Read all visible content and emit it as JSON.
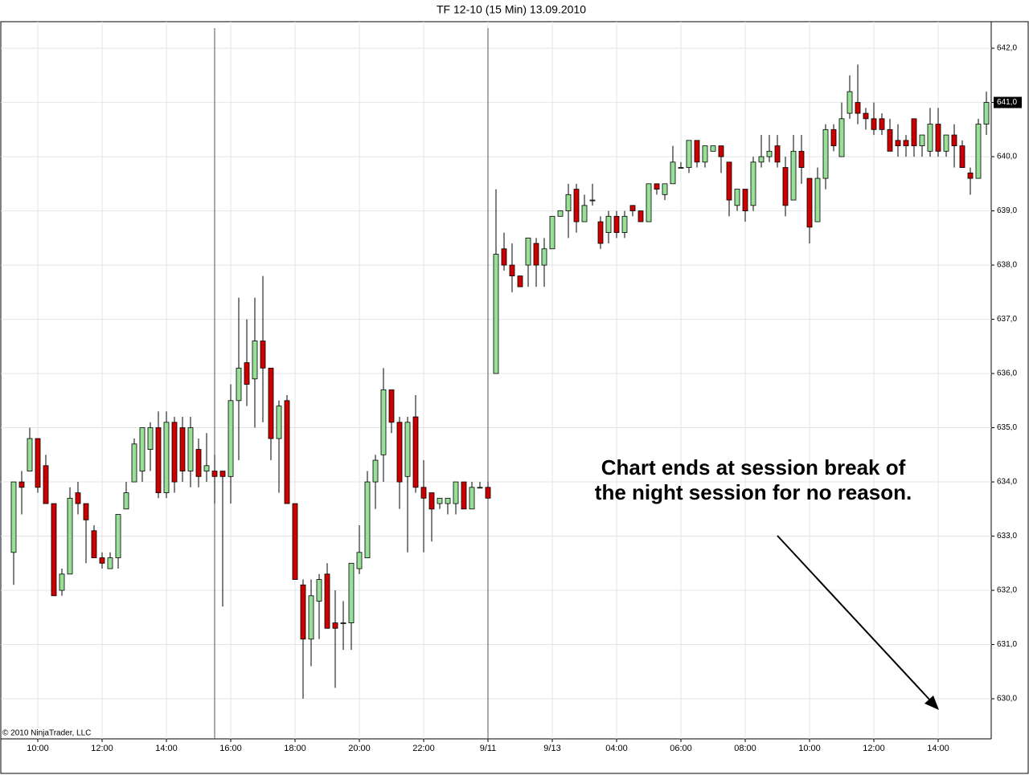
{
  "chart_data": {
    "type": "candlestick",
    "title": "TF 12-10 (15 Min)  13.09.2010",
    "annotation": [
      "Chart ends at session break of",
      "the night session for no reason."
    ],
    "copyright": "© 2010 NinjaTrader, LLC",
    "up_color": "#98e098",
    "down_color": "#cc0000",
    "grid": true,
    "categories": [
      null,
      null,
      null,
      "10:00",
      null,
      null,
      null,
      null,
      null,
      null,
      null,
      "12:00",
      null,
      null,
      null,
      null,
      null,
      null,
      null,
      "14:00",
      null,
      null,
      null,
      null,
      null,
      null,
      null,
      "16:00",
      null,
      null,
      null,
      null,
      null,
      null,
      null,
      "18:00",
      null,
      null,
      null,
      null,
      null,
      null,
      null,
      "20:00",
      null,
      null,
      null,
      null,
      null,
      null,
      null,
      "22:00",
      null,
      null,
      null,
      null,
      null,
      null,
      null,
      "9/11",
      null,
      null,
      null,
      null,
      null,
      null,
      null,
      "9/13",
      null,
      null,
      null,
      null,
      null,
      null,
      null,
      "04:00",
      null,
      null,
      null,
      null,
      null,
      null,
      null,
      "06:00",
      null,
      null,
      null,
      null,
      null,
      null,
      null,
      "08:00",
      null,
      null,
      null,
      null,
      null,
      null,
      null,
      "10:00",
      null,
      null,
      null,
      null,
      null,
      null,
      null,
      "12:00",
      null,
      null,
      null,
      null,
      null,
      null,
      null,
      "14:00",
      null,
      null,
      null,
      null,
      null,
      null
    ],
    "open": [
      632.7,
      634.0,
      634.2,
      634.8,
      634.3,
      633.6,
      632.0,
      632.3,
      633.8,
      633.6,
      633.1,
      632.6,
      632.4,
      632.6,
      633.5,
      634.0,
      634.2,
      634.6,
      635.0,
      633.8,
      635.1,
      635.0,
      634.2,
      634.6,
      634.2,
      634.2,
      634.2,
      634.1,
      635.5,
      636.2,
      635.9,
      636.6,
      636.1,
      634.8,
      635.5,
      633.6,
      632.1,
      631.1,
      631.8,
      632.3,
      631.4,
      631.4,
      631.4,
      632.4,
      632.6,
      634.0,
      634.5,
      635.7,
      635.1,
      634.1,
      635.2,
      633.9,
      633.8,
      633.6,
      633.6,
      633.6,
      634.0,
      633.5,
      633.9,
      633.9,
      636.0,
      638.3,
      638.0,
      637.8,
      638.0,
      638.4,
      638.0,
      638.3,
      638.9,
      639.0,
      639.4,
      638.8,
      639.2,
      638.8,
      638.6,
      638.9,
      638.6,
      639.1,
      639.0,
      638.8,
      639.5,
      639.3,
      639.5,
      639.8,
      639.8,
      640.3,
      639.9,
      640.1,
      640.2,
      639.9,
      639.1,
      639.4,
      639.1,
      639.9,
      640.0,
      640.2,
      639.8,
      639.2,
      640.1,
      639.6,
      638.8,
      639.6,
      640.5,
      640.0,
      640.8,
      641.0,
      640.8,
      640.7,
      640.7,
      640.5,
      640.3,
      640.3,
      640.7,
      640.2,
      640.1,
      640.6,
      640.1,
      640.4,
      640.2,
      639.7,
      639.6,
      640.6
    ],
    "high": [
      634.0,
      634.2,
      635.0,
      634.8,
      634.5,
      633.6,
      632.4,
      633.9,
      634.0,
      633.6,
      633.2,
      632.7,
      632.7,
      633.4,
      634.0,
      634.8,
      635.0,
      635.1,
      635.3,
      635.3,
      635.2,
      635.2,
      635.2,
      634.8,
      634.9,
      634.5,
      634.2,
      635.8,
      637.4,
      637.0,
      637.4,
      637.8,
      636.1,
      635.5,
      635.6,
      633.6,
      632.2,
      632.2,
      632.3,
      632.5,
      632.0,
      631.8,
      632.5,
      633.2,
      634.2,
      634.5,
      636.1,
      635.7,
      635.2,
      635.2,
      635.6,
      634.4,
      633.8,
      633.7,
      633.7,
      634.0,
      634.0,
      634.0,
      634.0,
      634.0,
      639.4,
      638.6,
      638.4,
      637.8,
      638.5,
      638.5,
      638.5,
      638.9,
      639.0,
      639.5,
      639.5,
      639.3,
      639.5,
      638.9,
      639.0,
      639.0,
      639.0,
      639.1,
      639.0,
      639.5,
      639.5,
      639.5,
      640.2,
      639.9,
      640.3,
      640.3,
      640.2,
      640.2,
      640.2,
      639.9,
      639.4,
      639.4,
      640.0,
      640.4,
      640.4,
      640.4,
      640.0,
      640.4,
      640.4,
      639.6,
      639.8,
      640.6,
      640.6,
      641.0,
      641.5,
      641.7,
      640.9,
      641.0,
      640.8,
      640.7,
      640.6,
      640.4,
      640.7,
      640.4,
      640.9,
      640.9,
      640.4,
      640.6,
      640.3,
      639.8,
      640.7,
      641.2
    ],
    "low": [
      632.1,
      633.4,
      634.2,
      633.8,
      633.6,
      631.9,
      631.9,
      632.3,
      633.4,
      632.5,
      632.6,
      632.4,
      632.4,
      632.4,
      633.5,
      634.0,
      634.0,
      634.2,
      633.7,
      633.7,
      633.8,
      634.0,
      633.9,
      633.9,
      634.0,
      633.6,
      631.7,
      633.6,
      634.4,
      635.4,
      635.0,
      635.1,
      634.4,
      633.8,
      633.6,
      632.2,
      630.0,
      630.6,
      631.1,
      631.3,
      630.2,
      630.9,
      630.9,
      632.3,
      632.6,
      633.5,
      634.0,
      634.9,
      633.5,
      632.7,
      633.8,
      632.7,
      632.9,
      633.5,
      633.4,
      633.4,
      633.5,
      633.5,
      633.9,
      633.7,
      636.0,
      637.9,
      637.5,
      637.6,
      637.6,
      637.6,
      637.6,
      638.3,
      638.9,
      638.5,
      638.6,
      638.8,
      639.1,
      638.3,
      638.4,
      638.5,
      638.5,
      638.9,
      638.8,
      638.8,
      639.3,
      639.2,
      639.5,
      639.8,
      639.7,
      639.8,
      639.8,
      640.1,
      639.7,
      638.9,
      639.0,
      638.8,
      639.0,
      639.8,
      639.9,
      639.8,
      638.9,
      639.2,
      639.5,
      638.4,
      638.8,
      639.4,
      640.1,
      640.0,
      640.7,
      640.6,
      640.5,
      640.4,
      640.4,
      640.1,
      640.0,
      640.0,
      640.0,
      640.0,
      640.0,
      640.0,
      640.0,
      639.8,
      639.8,
      639.3,
      639.6,
      640.4
    ],
    "close": [
      634.0,
      633.9,
      634.8,
      633.9,
      633.6,
      631.9,
      632.3,
      633.7,
      633.6,
      633.3,
      632.6,
      632.5,
      632.6,
      633.4,
      633.8,
      634.7,
      635.0,
      635.0,
      633.8,
      635.1,
      634.0,
      634.2,
      635.0,
      634.1,
      634.3,
      634.1,
      634.1,
      635.5,
      636.1,
      635.8,
      636.6,
      636.1,
      634.8,
      635.4,
      633.6,
      632.2,
      631.1,
      631.9,
      632.2,
      631.3,
      631.3,
      631.4,
      632.5,
      632.7,
      634.0,
      634.4,
      635.7,
      635.1,
      634.0,
      635.1,
      633.9,
      633.7,
      633.5,
      633.7,
      633.7,
      634.0,
      633.5,
      633.9,
      633.9,
      633.7,
      638.2,
      638.0,
      637.8,
      637.6,
      638.5,
      638.0,
      638.3,
      638.9,
      639.0,
      639.3,
      638.8,
      639.1,
      639.2,
      638.4,
      638.9,
      638.6,
      638.9,
      639.0,
      638.8,
      639.5,
      639.4,
      639.5,
      639.9,
      639.8,
      640.3,
      639.9,
      640.2,
      640.2,
      640.0,
      639.2,
      639.4,
      639.0,
      639.9,
      640.0,
      640.1,
      639.9,
      639.1,
      640.1,
      639.8,
      638.7,
      639.6,
      640.5,
      640.2,
      640.7,
      641.2,
      640.8,
      640.7,
      640.5,
      640.5,
      640.1,
      640.2,
      640.2,
      640.2,
      640.4,
      640.6,
      640.1,
      640.4,
      640.2,
      639.8,
      639.6,
      640.6,
      641.0
    ],
    "ylim": [
      629.26,
      642.49
    ],
    "yticks": [
      {
        "value": 630,
        "label": "630,0"
      },
      {
        "value": 631,
        "label": "631,0"
      },
      {
        "value": 632,
        "label": "632,0"
      },
      {
        "value": 633,
        "label": "633,0"
      },
      {
        "value": 634,
        "label": "634,0"
      },
      {
        "value": 635,
        "label": "635,0"
      },
      {
        "value": 636,
        "label": "636,0"
      },
      {
        "value": 637,
        "label": "637,0"
      },
      {
        "value": 638,
        "label": "638,0"
      },
      {
        "value": 639,
        "label": "639,0"
      },
      {
        "value": 640,
        "label": "640,0"
      },
      {
        "value": 641,
        "label": "641,0"
      },
      {
        "value": 642,
        "label": "642,0"
      }
    ],
    "last_price": {
      "value": 641.0,
      "label": "641,0"
    }
  }
}
